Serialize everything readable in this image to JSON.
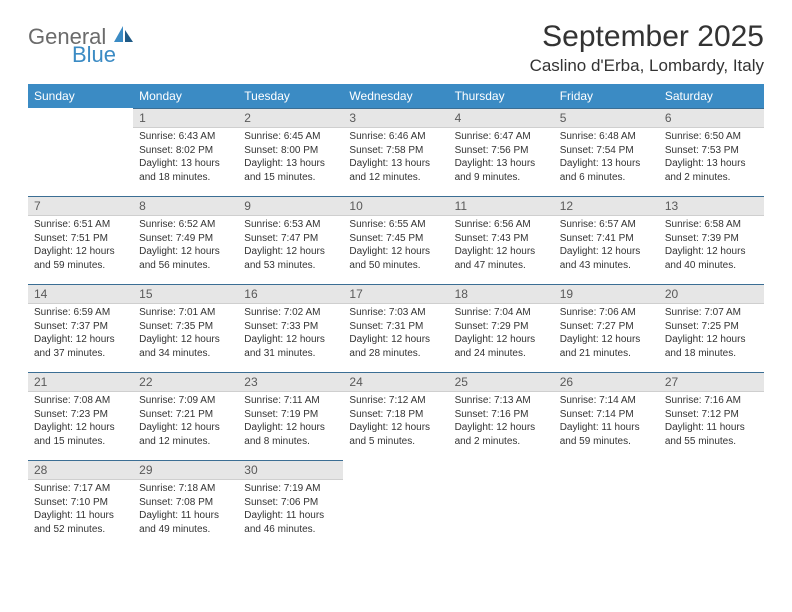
{
  "brand": {
    "name_top": "General",
    "name_bottom": "Blue"
  },
  "colors": {
    "header_bg": "#3b8bc4",
    "header_text": "#ffffff",
    "day_bar_bg": "#e6e6e6",
    "day_bar_border_top": "#3b6e94",
    "logo_gray": "#6b6b6b",
    "logo_blue": "#3b8bc4"
  },
  "title": "September 2025",
  "location": "Caslino d'Erba, Lombardy, Italy",
  "weekdays": [
    "Sunday",
    "Monday",
    "Tuesday",
    "Wednesday",
    "Thursday",
    "Friday",
    "Saturday"
  ],
  "start_offset": 1,
  "days": [
    {
      "n": 1,
      "sunrise": "6:43 AM",
      "sunset": "8:02 PM",
      "daylight": "13 hours and 18 minutes."
    },
    {
      "n": 2,
      "sunrise": "6:45 AM",
      "sunset": "8:00 PM",
      "daylight": "13 hours and 15 minutes."
    },
    {
      "n": 3,
      "sunrise": "6:46 AM",
      "sunset": "7:58 PM",
      "daylight": "13 hours and 12 minutes."
    },
    {
      "n": 4,
      "sunrise": "6:47 AM",
      "sunset": "7:56 PM",
      "daylight": "13 hours and 9 minutes."
    },
    {
      "n": 5,
      "sunrise": "6:48 AM",
      "sunset": "7:54 PM",
      "daylight": "13 hours and 6 minutes."
    },
    {
      "n": 6,
      "sunrise": "6:50 AM",
      "sunset": "7:53 PM",
      "daylight": "13 hours and 2 minutes."
    },
    {
      "n": 7,
      "sunrise": "6:51 AM",
      "sunset": "7:51 PM",
      "daylight": "12 hours and 59 minutes."
    },
    {
      "n": 8,
      "sunrise": "6:52 AM",
      "sunset": "7:49 PM",
      "daylight": "12 hours and 56 minutes."
    },
    {
      "n": 9,
      "sunrise": "6:53 AM",
      "sunset": "7:47 PM",
      "daylight": "12 hours and 53 minutes."
    },
    {
      "n": 10,
      "sunrise": "6:55 AM",
      "sunset": "7:45 PM",
      "daylight": "12 hours and 50 minutes."
    },
    {
      "n": 11,
      "sunrise": "6:56 AM",
      "sunset": "7:43 PM",
      "daylight": "12 hours and 47 minutes."
    },
    {
      "n": 12,
      "sunrise": "6:57 AM",
      "sunset": "7:41 PM",
      "daylight": "12 hours and 43 minutes."
    },
    {
      "n": 13,
      "sunrise": "6:58 AM",
      "sunset": "7:39 PM",
      "daylight": "12 hours and 40 minutes."
    },
    {
      "n": 14,
      "sunrise": "6:59 AM",
      "sunset": "7:37 PM",
      "daylight": "12 hours and 37 minutes."
    },
    {
      "n": 15,
      "sunrise": "7:01 AM",
      "sunset": "7:35 PM",
      "daylight": "12 hours and 34 minutes."
    },
    {
      "n": 16,
      "sunrise": "7:02 AM",
      "sunset": "7:33 PM",
      "daylight": "12 hours and 31 minutes."
    },
    {
      "n": 17,
      "sunrise": "7:03 AM",
      "sunset": "7:31 PM",
      "daylight": "12 hours and 28 minutes."
    },
    {
      "n": 18,
      "sunrise": "7:04 AM",
      "sunset": "7:29 PM",
      "daylight": "12 hours and 24 minutes."
    },
    {
      "n": 19,
      "sunrise": "7:06 AM",
      "sunset": "7:27 PM",
      "daylight": "12 hours and 21 minutes."
    },
    {
      "n": 20,
      "sunrise": "7:07 AM",
      "sunset": "7:25 PM",
      "daylight": "12 hours and 18 minutes."
    },
    {
      "n": 21,
      "sunrise": "7:08 AM",
      "sunset": "7:23 PM",
      "daylight": "12 hours and 15 minutes."
    },
    {
      "n": 22,
      "sunrise": "7:09 AM",
      "sunset": "7:21 PM",
      "daylight": "12 hours and 12 minutes."
    },
    {
      "n": 23,
      "sunrise": "7:11 AM",
      "sunset": "7:19 PM",
      "daylight": "12 hours and 8 minutes."
    },
    {
      "n": 24,
      "sunrise": "7:12 AM",
      "sunset": "7:18 PM",
      "daylight": "12 hours and 5 minutes."
    },
    {
      "n": 25,
      "sunrise": "7:13 AM",
      "sunset": "7:16 PM",
      "daylight": "12 hours and 2 minutes."
    },
    {
      "n": 26,
      "sunrise": "7:14 AM",
      "sunset": "7:14 PM",
      "daylight": "11 hours and 59 minutes."
    },
    {
      "n": 27,
      "sunrise": "7:16 AM",
      "sunset": "7:12 PM",
      "daylight": "11 hours and 55 minutes."
    },
    {
      "n": 28,
      "sunrise": "7:17 AM",
      "sunset": "7:10 PM",
      "daylight": "11 hours and 52 minutes."
    },
    {
      "n": 29,
      "sunrise": "7:18 AM",
      "sunset": "7:08 PM",
      "daylight": "11 hours and 49 minutes."
    },
    {
      "n": 30,
      "sunrise": "7:19 AM",
      "sunset": "7:06 PM",
      "daylight": "11 hours and 46 minutes."
    }
  ],
  "labels": {
    "sunrise": "Sunrise:",
    "sunset": "Sunset:",
    "daylight": "Daylight:"
  }
}
